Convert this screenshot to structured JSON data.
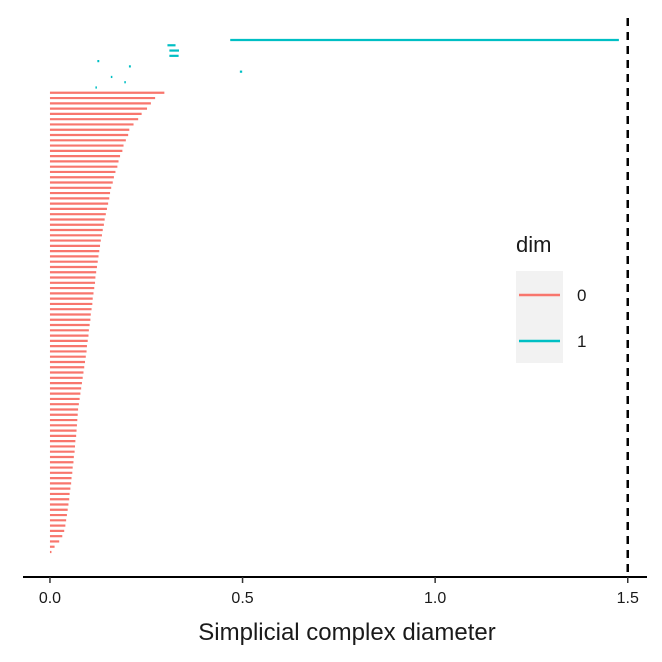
{
  "chart_data": {
    "type": "barcode",
    "title": "",
    "xlabel": "Simplicial complex diameter",
    "ylabel": "",
    "xlim": [
      -0.07,
      1.55
    ],
    "x_ticks": [
      0.0,
      0.5,
      1.0,
      1.5
    ],
    "x_tick_labels": [
      "0.0",
      "0.5",
      "1.0",
      "1.5"
    ],
    "cutoff_line": 1.5,
    "grid": false,
    "legend": {
      "title": "dim",
      "placement": "right",
      "entries": [
        {
          "label": "0",
          "color": "#F8766D"
        },
        {
          "label": "1",
          "color": "#00BFC4"
        }
      ]
    },
    "series": [
      {
        "name": "0",
        "color": "#F8766D",
        "bars": [
          [
            0,
            0.297
          ],
          [
            0,
            0.273
          ],
          [
            0,
            0.262
          ],
          [
            0,
            0.252
          ],
          [
            0,
            0.238
          ],
          [
            0,
            0.229
          ],
          [
            0,
            0.217
          ],
          [
            0,
            0.206
          ],
          [
            0,
            0.203
          ],
          [
            0,
            0.197
          ],
          [
            0,
            0.191
          ],
          [
            0,
            0.188
          ],
          [
            0,
            0.182
          ],
          [
            0,
            0.178
          ],
          [
            0,
            0.175
          ],
          [
            0,
            0.17
          ],
          [
            0,
            0.166
          ],
          [
            0,
            0.163
          ],
          [
            0,
            0.159
          ],
          [
            0,
            0.156
          ],
          [
            0,
            0.154
          ],
          [
            0,
            0.151
          ],
          [
            0,
            0.148
          ],
          [
            0,
            0.145
          ],
          [
            0,
            0.142
          ],
          [
            0,
            0.14
          ],
          [
            0,
            0.137
          ],
          [
            0,
            0.135
          ],
          [
            0,
            0.132
          ],
          [
            0,
            0.13
          ],
          [
            0,
            0.128
          ],
          [
            0,
            0.126
          ],
          [
            0,
            0.124
          ],
          [
            0,
            0.122
          ],
          [
            0,
            0.12
          ],
          [
            0,
            0.118
          ],
          [
            0,
            0.117
          ],
          [
            0,
            0.115
          ],
          [
            0,
            0.113
          ],
          [
            0,
            0.111
          ],
          [
            0,
            0.11
          ],
          [
            0,
            0.108
          ],
          [
            0,
            0.106
          ],
          [
            0,
            0.105
          ],
          [
            0,
            0.103
          ],
          [
            0,
            0.101
          ],
          [
            0,
            0.1
          ],
          [
            0,
            0.098
          ],
          [
            0,
            0.096
          ],
          [
            0,
            0.095
          ],
          [
            0,
            0.093
          ],
          [
            0,
            0.091
          ],
          [
            0,
            0.089
          ],
          [
            0,
            0.087
          ],
          [
            0,
            0.085
          ],
          [
            0,
            0.083
          ],
          [
            0,
            0.081
          ],
          [
            0,
            0.079
          ],
          [
            0,
            0.077
          ],
          [
            0,
            0.075
          ],
          [
            0,
            0.073
          ],
          [
            0,
            0.072
          ],
          [
            0,
            0.071
          ],
          [
            0,
            0.07
          ],
          [
            0,
            0.069
          ],
          [
            0,
            0.068
          ],
          [
            0,
            0.066
          ],
          [
            0,
            0.065
          ],
          [
            0,
            0.064
          ],
          [
            0,
            0.062
          ],
          [
            0,
            0.061
          ],
          [
            0,
            0.059
          ],
          [
            0,
            0.058
          ],
          [
            0,
            0.056
          ],
          [
            0,
            0.055
          ],
          [
            0,
            0.053
          ],
          [
            0,
            0.051
          ],
          [
            0,
            0.05
          ],
          [
            0,
            0.048
          ],
          [
            0,
            0.046
          ],
          [
            0,
            0.044
          ],
          [
            0,
            0.042
          ],
          [
            0,
            0.04
          ],
          [
            0,
            0.037
          ],
          [
            0,
            0.032
          ],
          [
            0,
            0.024
          ],
          [
            0,
            0.012
          ],
          [
            0,
            0.003
          ]
        ]
      },
      {
        "name": "1",
        "color": "#00BFC4",
        "bars": [
          [
            0.468,
            1.477
          ],
          [
            0.305,
            0.326
          ],
          [
            0.31,
            0.335
          ],
          [
            0.31,
            0.334
          ],
          [
            0.123,
            0.128
          ],
          [
            0.205,
            0.21
          ],
          [
            0.493,
            0.499
          ],
          [
            0.158,
            0.162
          ],
          [
            0.193,
            0.197
          ],
          [
            0.118,
            0.12
          ]
        ]
      }
    ]
  }
}
